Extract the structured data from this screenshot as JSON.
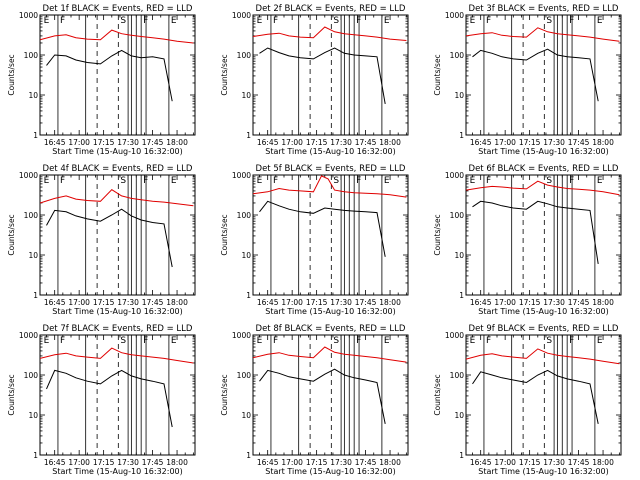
{
  "figure": {
    "colors": {
      "events": "#000000",
      "lld": "#e00000",
      "axis": "#000000"
    }
  },
  "chart_data": [
    {
      "type": "line",
      "panel": 1,
      "title": "Det 1f BLACK = Events, RED = LLD",
      "xlabel": "Start Time (15-Aug-10 16:32:00)",
      "ylabel": "Counts/sec",
      "xlim": [
        "16:36",
        "18:11"
      ],
      "ylim": [
        1,
        1000
      ],
      "yscale": "log",
      "xticks": [
        "16:45",
        "17:00",
        "17:15",
        "17:30",
        "17:45",
        "18:00"
      ],
      "yticks": [
        "1",
        "10",
        "100",
        "1000"
      ],
      "markers": [
        "E",
        "F",
        "S",
        "F",
        "E"
      ],
      "series": [
        {
          "name": "Events",
          "color": "#000000",
          "x": [
            "16:40",
            "16:45",
            "16:52",
            "16:58",
            "17:05",
            "17:13",
            "17:20",
            "17:26",
            "17:32",
            "17:38",
            "17:45",
            "17:52",
            "17:57"
          ],
          "y": [
            55,
            100,
            95,
            75,
            65,
            60,
            95,
            130,
            95,
            85,
            90,
            80,
            7
          ]
        },
        {
          "name": "LLD",
          "color": "#e00000",
          "x": [
            "16:36",
            "16:45",
            "16:52",
            "16:58",
            "17:05",
            "17:13",
            "17:20",
            "17:26",
            "17:32",
            "17:38",
            "17:45",
            "17:52",
            "18:00",
            "18:10"
          ],
          "y": [
            240,
            300,
            320,
            270,
            250,
            240,
            420,
            340,
            310,
            290,
            270,
            250,
            220,
            200
          ]
        }
      ]
    },
    {
      "type": "line",
      "panel": 2,
      "title": "Det 2f BLACK = Events, RED = LLD",
      "xlabel": "Start Time (15-Aug-10 16:32:00)",
      "ylabel": "Counts/sec",
      "xlim": [
        "16:36",
        "18:11"
      ],
      "ylim": [
        1,
        1000
      ],
      "yscale": "log",
      "xticks": [
        "16:45",
        "17:00",
        "17:15",
        "17:30",
        "17:45",
        "18:00"
      ],
      "yticks": [
        "1",
        "10",
        "100",
        "1000"
      ],
      "markers": [
        "E",
        "F",
        "S",
        "F",
        "E"
      ],
      "series": [
        {
          "name": "Events",
          "color": "#000000",
          "x": [
            "16:40",
            "16:45",
            "16:52",
            "16:58",
            "17:05",
            "17:13",
            "17:20",
            "17:26",
            "17:32",
            "17:38",
            "17:45",
            "17:52",
            "17:57"
          ],
          "y": [
            110,
            150,
            115,
            95,
            85,
            80,
            115,
            150,
            110,
            100,
            95,
            90,
            6
          ]
        },
        {
          "name": "LLD",
          "color": "#e00000",
          "x": [
            "16:36",
            "16:45",
            "16:52",
            "16:58",
            "17:05",
            "17:13",
            "17:20",
            "17:26",
            "17:32",
            "17:38",
            "17:45",
            "17:52",
            "18:00",
            "18:10"
          ],
          "y": [
            290,
            330,
            350,
            300,
            280,
            270,
            500,
            380,
            340,
            320,
            300,
            280,
            250,
            230
          ]
        }
      ]
    },
    {
      "type": "line",
      "panel": 3,
      "title": "Det 3f BLACK = Events, RED = LLD",
      "xlabel": "Start Time (15-Aug-10 16:32:00)",
      "ylabel": "Counts/sec",
      "xlim": [
        "16:36",
        "18:11"
      ],
      "ylim": [
        1,
        1000
      ],
      "yscale": "log",
      "xticks": [
        "16:45",
        "17:00",
        "17:15",
        "17:30",
        "17:45",
        "18:00"
      ],
      "yticks": [
        "1",
        "10",
        "100",
        "1000"
      ],
      "markers": [
        "E",
        "F",
        "S",
        "F",
        "E"
      ],
      "series": [
        {
          "name": "Events",
          "color": "#000000",
          "x": [
            "16:40",
            "16:45",
            "16:52",
            "16:58",
            "17:05",
            "17:13",
            "17:20",
            "17:26",
            "17:32",
            "17:38",
            "17:45",
            "17:52",
            "17:57"
          ],
          "y": [
            90,
            130,
            110,
            90,
            80,
            75,
            110,
            140,
            100,
            90,
            85,
            80,
            7
          ]
        },
        {
          "name": "LLD",
          "color": "#e00000",
          "x": [
            "16:36",
            "16:45",
            "16:52",
            "16:58",
            "17:05",
            "17:13",
            "17:20",
            "17:26",
            "17:32",
            "17:38",
            "17:45",
            "17:52",
            "18:00",
            "18:10"
          ],
          "y": [
            300,
            340,
            360,
            310,
            290,
            280,
            480,
            380,
            340,
            320,
            300,
            280,
            250,
            220
          ]
        }
      ]
    },
    {
      "type": "line",
      "panel": 4,
      "title": "Det 4f BLACK = Events, RED = LLD",
      "xlabel": "Start Time (15-Aug-10 16:32:00)",
      "ylabel": "Counts/sec",
      "xlim": [
        "16:36",
        "18:11"
      ],
      "ylim": [
        1,
        1000
      ],
      "yscale": "log",
      "xticks": [
        "16:45",
        "17:00",
        "17:15",
        "17:30",
        "17:45",
        "18:00"
      ],
      "yticks": [
        "1",
        "10",
        "100",
        "1000"
      ],
      "markers": [
        "E",
        "F",
        "S",
        "F",
        "E"
      ],
      "series": [
        {
          "name": "Events",
          "color": "#000000",
          "x": [
            "16:40",
            "16:45",
            "16:52",
            "16:58",
            "17:05",
            "17:13",
            "17:20",
            "17:26",
            "17:32",
            "17:38",
            "17:45",
            "17:52",
            "17:57"
          ],
          "y": [
            55,
            130,
            120,
            95,
            80,
            70,
            100,
            140,
            95,
            75,
            65,
            60,
            5
          ]
        },
        {
          "name": "LLD",
          "color": "#e00000",
          "x": [
            "16:36",
            "16:45",
            "16:52",
            "16:58",
            "17:05",
            "17:13",
            "17:20",
            "17:26",
            "17:32",
            "17:38",
            "17:45",
            "17:52",
            "18:00",
            "18:10"
          ],
          "y": [
            200,
            260,
            300,
            250,
            230,
            220,
            430,
            300,
            260,
            240,
            220,
            210,
            190,
            170
          ]
        }
      ]
    },
    {
      "type": "line",
      "panel": 5,
      "title": "Det 5f BLACK = Events, RED = LLD",
      "xlabel": "Start Time (15-Aug-10 16:32:00)",
      "ylabel": "Counts/sec",
      "xlim": [
        "16:36",
        "18:11"
      ],
      "ylim": [
        1,
        1000
      ],
      "yscale": "log",
      "xticks": [
        "16:45",
        "17:00",
        "17:15",
        "17:30",
        "17:45",
        "18:00"
      ],
      "yticks": [
        "1",
        "10",
        "100",
        "1000"
      ],
      "markers": [
        "E",
        "F",
        "S",
        "F",
        "E"
      ],
      "series": [
        {
          "name": "Events",
          "color": "#000000",
          "x": [
            "16:40",
            "16:45",
            "16:52",
            "16:58",
            "17:05",
            "17:13",
            "17:20",
            "17:26",
            "17:32",
            "17:38",
            "17:45",
            "17:52",
            "17:57"
          ],
          "y": [
            120,
            220,
            170,
            140,
            120,
            110,
            150,
            140,
            130,
            125,
            120,
            115,
            9
          ]
        },
        {
          "name": "LLD",
          "color": "#e00000",
          "x": [
            "16:36",
            "16:45",
            "16:52",
            "16:58",
            "17:05",
            "17:13",
            "17:18",
            "17:22",
            "17:26",
            "17:32",
            "17:38",
            "17:45",
            "17:52",
            "18:00",
            "18:10"
          ],
          "y": [
            340,
            380,
            460,
            420,
            400,
            380,
            950,
            800,
            420,
            380,
            360,
            350,
            340,
            320,
            280
          ]
        }
      ]
    },
    {
      "type": "line",
      "panel": 6,
      "title": "Det 6f BLACK = Events, RED = LLD",
      "xlabel": "Start Time (15-Aug-10 16:32:00)",
      "ylabel": "Counts/sec",
      "xlim": [
        "16:36",
        "18:11"
      ],
      "ylim": [
        1,
        1000
      ],
      "yscale": "log",
      "xticks": [
        "16:45",
        "17:00",
        "17:15",
        "17:30",
        "17:45",
        "18:00"
      ],
      "yticks": [
        "1",
        "10",
        "100",
        "1000"
      ],
      "markers": [
        "E",
        "F",
        "S",
        "F",
        "E"
      ],
      "series": [
        {
          "name": "Events",
          "color": "#000000",
          "x": [
            "16:40",
            "16:45",
            "16:52",
            "16:58",
            "17:05",
            "17:13",
            "17:20",
            "17:26",
            "17:32",
            "17:38",
            "17:45",
            "17:52",
            "17:57"
          ],
          "y": [
            160,
            220,
            200,
            170,
            150,
            140,
            220,
            190,
            160,
            150,
            140,
            130,
            6
          ]
        },
        {
          "name": "LLD",
          "color": "#e00000",
          "x": [
            "16:36",
            "16:45",
            "16:52",
            "16:58",
            "17:05",
            "17:13",
            "17:20",
            "17:26",
            "17:32",
            "17:38",
            "17:45",
            "17:52",
            "18:00",
            "18:10"
          ],
          "y": [
            420,
            480,
            520,
            500,
            470,
            450,
            700,
            560,
            500,
            460,
            440,
            420,
            380,
            320
          ]
        }
      ]
    },
    {
      "type": "line",
      "panel": 7,
      "title": "Det 7f BLACK = Events, RED = LLD",
      "xlabel": "Start Time (15-Aug-10 16:32:00)",
      "ylabel": "Counts/sec",
      "xlim": [
        "16:36",
        "18:11"
      ],
      "ylim": [
        1,
        1000
      ],
      "yscale": "log",
      "xticks": [
        "16:45",
        "17:00",
        "17:15",
        "17:30",
        "17:45",
        "18:00"
      ],
      "yticks": [
        "1",
        "10",
        "100",
        "1000"
      ],
      "markers": [
        "E",
        "F",
        "S",
        "F",
        "E"
      ],
      "series": [
        {
          "name": "Events",
          "color": "#000000",
          "x": [
            "16:40",
            "16:45",
            "16:52",
            "16:58",
            "17:05",
            "17:13",
            "17:20",
            "17:26",
            "17:32",
            "17:38",
            "17:45",
            "17:52",
            "17:57"
          ],
          "y": [
            45,
            130,
            110,
            85,
            70,
            60,
            95,
            130,
            95,
            80,
            70,
            60,
            5
          ]
        },
        {
          "name": "LLD",
          "color": "#e00000",
          "x": [
            "16:36",
            "16:45",
            "16:52",
            "16:58",
            "17:05",
            "17:13",
            "17:20",
            "17:26",
            "17:32",
            "17:38",
            "17:45",
            "17:52",
            "18:00",
            "18:10"
          ],
          "y": [
            260,
            320,
            350,
            300,
            280,
            260,
            470,
            360,
            320,
            300,
            280,
            260,
            230,
            200
          ]
        }
      ]
    },
    {
      "type": "line",
      "panel": 8,
      "title": "Det 8f BLACK = Events, RED = LLD",
      "xlabel": "Start Time (15-Aug-10 16:32:00)",
      "ylabel": "Counts/sec",
      "xlim": [
        "16:36",
        "18:11"
      ],
      "ylim": [
        1,
        1000
      ],
      "yscale": "log",
      "xticks": [
        "16:45",
        "17:00",
        "17:15",
        "17:30",
        "17:45",
        "18:00"
      ],
      "yticks": [
        "1",
        "10",
        "100",
        "1000"
      ],
      "markers": [
        "E",
        "F",
        "S",
        "F",
        "E"
      ],
      "series": [
        {
          "name": "Events",
          "color": "#000000",
          "x": [
            "16:40",
            "16:45",
            "16:52",
            "16:58",
            "17:05",
            "17:13",
            "17:20",
            "17:26",
            "17:32",
            "17:38",
            "17:45",
            "17:52",
            "17:57"
          ],
          "y": [
            70,
            130,
            110,
            90,
            80,
            70,
            105,
            140,
            100,
            85,
            75,
            65,
            6
          ]
        },
        {
          "name": "LLD",
          "color": "#e00000",
          "x": [
            "16:36",
            "16:45",
            "16:52",
            "16:58",
            "17:05",
            "17:13",
            "17:20",
            "17:26",
            "17:32",
            "17:38",
            "17:45",
            "17:52",
            "18:00",
            "18:10"
          ],
          "y": [
            270,
            330,
            360,
            310,
            290,
            270,
            500,
            370,
            330,
            310,
            290,
            270,
            240,
            210
          ]
        }
      ]
    },
    {
      "type": "line",
      "panel": 9,
      "title": "Det 9f BLACK = Events, RED = LLD",
      "xlabel": "Start Time (15-Aug-10 16:32:00)",
      "ylabel": "Counts/sec",
      "xlim": [
        "16:36",
        "18:11"
      ],
      "ylim": [
        1,
        1000
      ],
      "yscale": "log",
      "xticks": [
        "16:45",
        "17:00",
        "17:15",
        "17:30",
        "17:45",
        "18:00"
      ],
      "yticks": [
        "1",
        "10",
        "100",
        "1000"
      ],
      "markers": [
        "E",
        "F",
        "S",
        "F",
        "E"
      ],
      "series": [
        {
          "name": "Events",
          "color": "#000000",
          "x": [
            "16:40",
            "16:45",
            "16:52",
            "16:58",
            "17:05",
            "17:13",
            "17:20",
            "17:26",
            "17:32",
            "17:38",
            "17:45",
            "17:52",
            "17:57"
          ],
          "y": [
            60,
            120,
            100,
            85,
            75,
            65,
            100,
            130,
            95,
            80,
            70,
            60,
            6
          ]
        },
        {
          "name": "LLD",
          "color": "#e00000",
          "x": [
            "16:36",
            "16:45",
            "16:52",
            "16:58",
            "17:05",
            "17:13",
            "17:20",
            "17:26",
            "17:32",
            "17:38",
            "17:45",
            "17:52",
            "18:00",
            "18:10"
          ],
          "y": [
            250,
            310,
            340,
            300,
            280,
            260,
            450,
            350,
            310,
            290,
            270,
            250,
            220,
            190
          ]
        }
      ]
    }
  ]
}
